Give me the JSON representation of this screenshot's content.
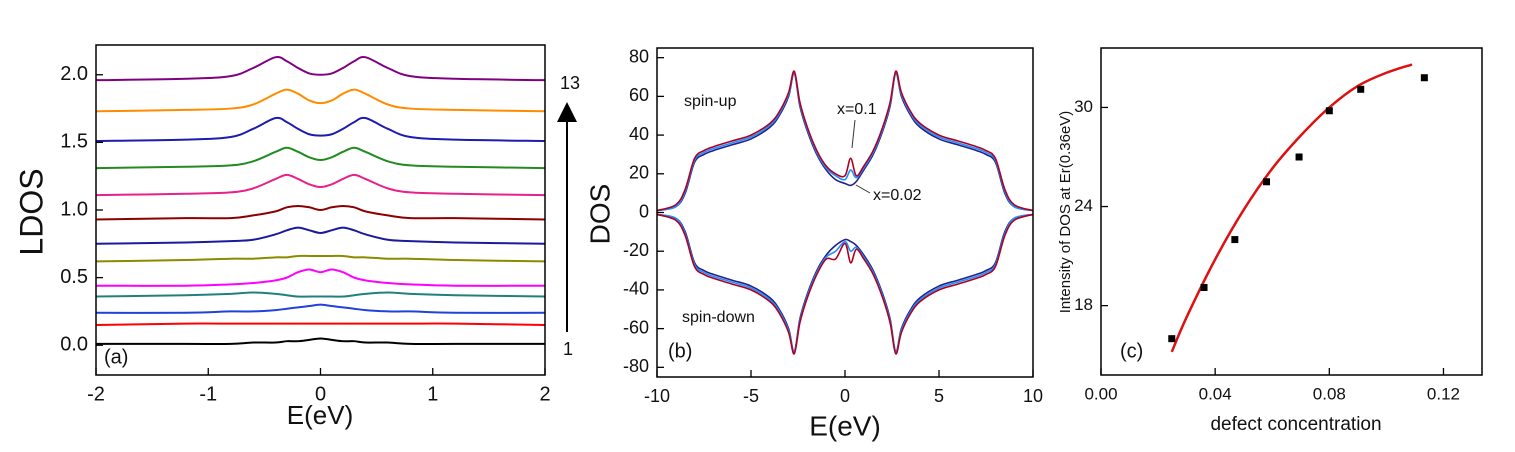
{
  "chart_data": [
    {
      "type": "line",
      "xlabel": "E(eV)",
      "ylabel": "LDOS",
      "tag": "(a)",
      "arrow_top_label": "13",
      "arrow_bottom_label": "1",
      "xlim": [
        -2,
        2
      ],
      "ylim": [
        -0.22,
        2.22
      ],
      "xticks": [
        -2,
        -1,
        0,
        1,
        2
      ],
      "yticks": [
        {
          "value": 0,
          "label": "0.0"
        },
        0.5,
        {
          "value": 1,
          "label": "1.0"
        },
        1.5,
        {
          "value": 2,
          "label": "2.0"
        }
      ],
      "x": [
        -2,
        -1.2,
        -0.8,
        -0.6,
        -0.4,
        -0.3,
        -0.2,
        -0.1,
        0,
        0.1,
        0.2,
        0.3,
        0.4,
        0.6,
        0.8,
        1.2,
        2
      ],
      "series": [
        {
          "color": "#000000",
          "values": [
            0.01,
            0.01,
            0.01,
            0.02,
            0.02,
            0.03,
            0.03,
            0.04,
            0.05,
            0.04,
            0.03,
            0.03,
            0.02,
            0.02,
            0.01,
            0.01,
            0.01
          ]
        },
        {
          "color": "#ff0000",
          "values": [
            0.15,
            0.16,
            0.16,
            0.16,
            0.16,
            0.16,
            0.16,
            0.16,
            0.16,
            0.16,
            0.16,
            0.16,
            0.16,
            0.16,
            0.16,
            0.16,
            0.15
          ]
        },
        {
          "color": "#2040e0",
          "values": [
            0.24,
            0.24,
            0.25,
            0.25,
            0.26,
            0.27,
            0.28,
            0.29,
            0.3,
            0.29,
            0.28,
            0.27,
            0.26,
            0.25,
            0.25,
            0.24,
            0.24
          ]
        },
        {
          "color": "#208080",
          "values": [
            0.36,
            0.37,
            0.38,
            0.39,
            0.38,
            0.37,
            0.36,
            0.36,
            0.36,
            0.36,
            0.36,
            0.37,
            0.38,
            0.39,
            0.38,
            0.37,
            0.36
          ]
        },
        {
          "color": "#ff00ff",
          "values": [
            0.44,
            0.44,
            0.45,
            0.46,
            0.48,
            0.5,
            0.54,
            0.56,
            0.54,
            0.56,
            0.54,
            0.5,
            0.48,
            0.46,
            0.45,
            0.44,
            0.44
          ]
        },
        {
          "color": "#8b8b00",
          "values": [
            0.62,
            0.63,
            0.64,
            0.64,
            0.65,
            0.65,
            0.66,
            0.66,
            0.66,
            0.66,
            0.66,
            0.65,
            0.65,
            0.64,
            0.64,
            0.63,
            0.62
          ]
        },
        {
          "color": "#1a1a9c",
          "values": [
            0.75,
            0.76,
            0.77,
            0.78,
            0.82,
            0.85,
            0.87,
            0.85,
            0.83,
            0.85,
            0.87,
            0.85,
            0.82,
            0.78,
            0.77,
            0.76,
            0.75
          ]
        },
        {
          "color": "#8b0000",
          "values": [
            0.93,
            0.94,
            0.94,
            0.96,
            0.99,
            1.02,
            1.03,
            1.02,
            1.0,
            1.02,
            1.03,
            1.02,
            0.99,
            0.96,
            0.94,
            0.94,
            0.93
          ]
        },
        {
          "color": "#e8208a",
          "values": [
            1.11,
            1.12,
            1.13,
            1.16,
            1.23,
            1.26,
            1.23,
            1.19,
            1.17,
            1.19,
            1.23,
            1.26,
            1.23,
            1.16,
            1.13,
            1.12,
            1.11
          ]
        },
        {
          "color": "#228b22",
          "values": [
            1.31,
            1.32,
            1.33,
            1.36,
            1.43,
            1.46,
            1.43,
            1.39,
            1.37,
            1.39,
            1.43,
            1.46,
            1.43,
            1.36,
            1.33,
            1.32,
            1.31
          ]
        },
        {
          "color": "#1c1cb0",
          "values": [
            1.51,
            1.52,
            1.54,
            1.6,
            1.68,
            1.65,
            1.6,
            1.56,
            1.55,
            1.56,
            1.6,
            1.65,
            1.68,
            1.6,
            1.54,
            1.52,
            1.51
          ]
        },
        {
          "color": "#ff8c00",
          "values": [
            1.73,
            1.74,
            1.75,
            1.78,
            1.86,
            1.89,
            1.86,
            1.81,
            1.79,
            1.81,
            1.86,
            1.89,
            1.86,
            1.78,
            1.75,
            1.74,
            1.73
          ]
        },
        {
          "color": "#800080",
          "values": [
            1.96,
            1.97,
            1.99,
            2.05,
            2.13,
            2.1,
            2.05,
            2.01,
            2.0,
            2.01,
            2.05,
            2.1,
            2.13,
            2.05,
            1.99,
            1.97,
            1.96
          ]
        }
      ]
    },
    {
      "type": "line",
      "xlabel": "E(eV)",
      "ylabel": "DOS",
      "tag": "(b)",
      "spin_up_label": "spin-up",
      "spin_down_label": "spin-down",
      "annotations": [
        "x=0.1",
        "x=0.02"
      ],
      "xlim": [
        -10,
        10
      ],
      "ylim": [
        -85,
        85
      ],
      "xticks": [
        -10,
        -5,
        0,
        5,
        10
      ],
      "yticks": [
        -80,
        -60,
        -40,
        -20,
        0,
        20,
        40,
        60,
        80
      ],
      "x": [
        -10,
        -9,
        -8.5,
        -8,
        -7.5,
        -7,
        -6,
        -5,
        -4,
        -3.5,
        -3,
        -2.7,
        -2.4,
        -2,
        -1.5,
        -1,
        -0.5,
        0,
        0.3,
        0.6,
        1,
        1.5,
        2,
        2.4,
        2.7,
        3,
        3.5,
        4,
        5,
        6,
        7,
        7.5,
        8,
        8.5,
        9,
        10
      ],
      "series": [
        {
          "color": "#222288",
          "values": [
            1,
            3,
            10,
            26,
            30,
            32,
            35,
            38,
            44,
            50,
            60,
            72,
            55,
            42,
            30,
            22,
            17,
            15,
            14,
            16,
            22,
            30,
            42,
            55,
            72,
            60,
            50,
            44,
            38,
            35,
            32,
            30,
            26,
            10,
            3,
            1
          ]
        },
        {
          "color": "#1e90ff",
          "values": [
            1,
            3,
            11,
            27,
            31,
            33,
            36,
            39,
            45,
            51,
            61,
            72,
            56,
            43,
            31,
            23,
            19,
            17,
            22,
            18,
            23,
            31,
            43,
            56,
            72,
            61,
            51,
            45,
            39,
            36,
            33,
            31,
            27,
            11,
            3,
            1
          ]
        },
        {
          "color": "#b00020",
          "values": [
            1,
            4,
            12,
            28,
            32,
            34,
            37,
            40,
            46,
            52,
            62,
            73,
            57,
            44,
            32,
            24,
            20,
            19,
            28,
            19,
            24,
            32,
            44,
            57,
            73,
            62,
            52,
            46,
            40,
            37,
            34,
            32,
            28,
            12,
            4,
            1
          ]
        },
        {
          "color": "#222288",
          "values": [
            -1,
            -3,
            -10,
            -26,
            -30,
            -32,
            -35,
            -38,
            -44,
            -50,
            -60,
            -72,
            -55,
            -42,
            -30,
            -22,
            -17,
            -14,
            -15,
            -17,
            -22,
            -30,
            -42,
            -55,
            -72,
            -60,
            -50,
            -44,
            -38,
            -35,
            -32,
            -30,
            -26,
            -10,
            -3,
            -1
          ]
        },
        {
          "color": "#1e90ff",
          "values": [
            -1,
            -3,
            -11,
            -27,
            -31,
            -33,
            -36,
            -39,
            -45,
            -51,
            -61,
            -72,
            -56,
            -43,
            -31,
            -23,
            -20,
            -15,
            -20,
            -18,
            -23,
            -31,
            -43,
            -56,
            -72,
            -61,
            -51,
            -45,
            -39,
            -36,
            -33,
            -31,
            -27,
            -11,
            -3,
            -1
          ]
        },
        {
          "color": "#b00020",
          "values": [
            -1,
            -4,
            -12,
            -28,
            -32,
            -34,
            -37,
            -40,
            -46,
            -52,
            -62,
            -73,
            -57,
            -44,
            -32,
            -24,
            -24,
            -16,
            -26,
            -19,
            -24,
            -32,
            -44,
            -57,
            -73,
            -62,
            -52,
            -46,
            -40,
            -37,
            -34,
            -32,
            -28,
            -12,
            -4,
            -1
          ]
        }
      ]
    },
    {
      "type": "scatter",
      "xlabel": "defect concentration",
      "ylabel": "Intensity of DOS at Er(0.36eV)",
      "tag": "(c)",
      "xlim": [
        0,
        0.1335
      ],
      "ylim": [
        13.8,
        33.6
      ],
      "xticks": [
        {
          "value": 0,
          "label": "0.00"
        },
        0.04,
        0.08,
        0.12
      ],
      "yticks": [
        18,
        24,
        30
      ],
      "color": "#000000",
      "x": [
        0.0248,
        0.0361,
        0.0469,
        0.058,
        0.0694,
        0.08,
        0.091,
        0.1133
      ],
      "values": [
        16.0,
        19.1,
        22.0,
        25.5,
        27.0,
        29.8,
        31.1,
        31.8
      ],
      "fit": {
        "color": "#dd1111",
        "x": [
          0.0248,
          0.03,
          0.04,
          0.05,
          0.06,
          0.07,
          0.08,
          0.09,
          0.1,
          0.109
        ],
        "values": [
          15.2,
          17.3,
          20.8,
          23.8,
          26.3,
          28.3,
          30.0,
          31.3,
          32.1,
          32.6
        ]
      }
    }
  ]
}
